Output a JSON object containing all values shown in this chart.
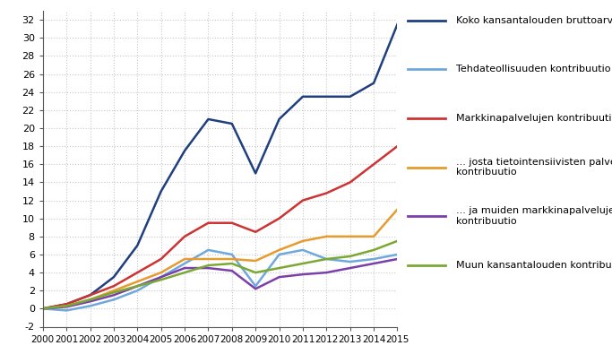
{
  "years": [
    2000,
    2001,
    2002,
    2003,
    2004,
    2005,
    2006,
    2007,
    2008,
    2009,
    2010,
    2011,
    2012,
    2013,
    2014,
    2015
  ],
  "series": {
    "Koko kansantalouden bruttoarvonlisäys": [
      0,
      0.5,
      1.5,
      3.5,
      7.0,
      13.0,
      17.5,
      21.0,
      20.5,
      15.0,
      21.0,
      23.5,
      23.5,
      23.5,
      25.0,
      31.5
    ],
    "Tehdateollisuuden kontribuutio": [
      0,
      -0.2,
      0.3,
      1.0,
      2.0,
      3.5,
      5.0,
      6.5,
      6.0,
      2.5,
      6.0,
      6.5,
      5.5,
      5.2,
      5.5,
      6.0
    ],
    "Markkinapalvelujen kontribuutio": [
      0,
      0.5,
      1.5,
      2.5,
      4.0,
      5.5,
      8.0,
      9.5,
      9.5,
      8.5,
      10.0,
      12.0,
      12.8,
      14.0,
      16.0,
      18.0
    ],
    "... josta tietointensiivisten palvelujen kontribuutio": [
      0,
      0.3,
      1.0,
      2.0,
      3.0,
      4.0,
      5.5,
      5.5,
      5.5,
      5.3,
      6.5,
      7.5,
      8.0,
      8.0,
      8.0,
      11.0
    ],
    "... ja muiden markkinapalvelujen kontribuutio": [
      0,
      0.2,
      0.8,
      1.5,
      2.5,
      3.5,
      4.5,
      4.5,
      4.2,
      2.2,
      3.5,
      3.8,
      4.0,
      4.5,
      5.0,
      5.5
    ],
    "Muun kansantalouden kontribuutio": [
      0,
      0.3,
      1.0,
      1.8,
      2.5,
      3.2,
      4.0,
      4.8,
      5.0,
      4.0,
      4.5,
      5.0,
      5.5,
      5.8,
      6.5,
      7.5
    ]
  },
  "colors": {
    "Koko kansantalouden bruttoarvonlisäys": "#1F3F7F",
    "Tehdateollisuuden kontribuutio": "#6FA8DC",
    "Markkinapalvelujen kontribuutio": "#CC3333",
    "... josta tietointensiivisten palvelujen kontribuutio": "#E69B2E",
    "... ja muiden markkinapalvelujen kontribuutio": "#7B3FAA",
    "Muun kansantalouden kontribuutio": "#7BA832"
  },
  "legend_labels": {
    "Koko kansantalouden bruttoarvonlisäys": "Koko kansantalouden bruttoarvonlisäys",
    "Tehdateollisuuden kontribuutio": "Tehdateollisuuden kontribuutio",
    "Markkinapalvelujen kontribuutio": "Markkinapalvelujen kontribuutio",
    "... josta tietointensiivisten palvelujen kontribuutio": "... josta tietointensiivisten palvelujen\nkontribuutio",
    "... ja muiden markkinapalvelujen kontribuutio": "... ja muiden markkinapalvelujen\nkontribuutio",
    "Muun kansantalouden kontribuutio": "Muun kansantalouden kontribuutio"
  },
  "ylim": [
    -2,
    33
  ],
  "yticks": [
    -2,
    0,
    2,
    4,
    6,
    8,
    10,
    12,
    14,
    16,
    18,
    20,
    22,
    24,
    26,
    28,
    30,
    32
  ],
  "background_color": "#FFFFFF",
  "grid_color": "#C8C8C8",
  "linewidth": 1.8,
  "figsize": [
    6.83,
    4.05
  ],
  "dpi": 100
}
